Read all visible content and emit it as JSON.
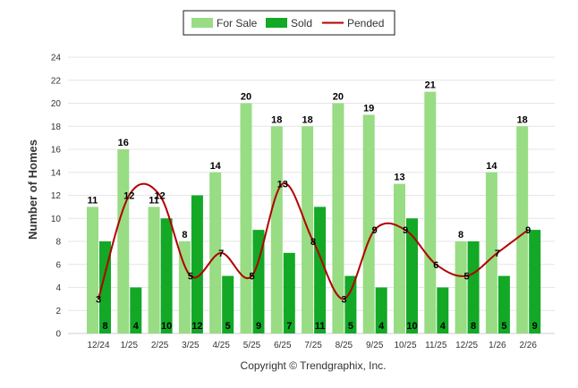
{
  "chart_data": {
    "type": "bar",
    "categories": [
      "12/24",
      "1/25",
      "2/25",
      "3/25",
      "4/25",
      "5/25",
      "6/25",
      "7/25",
      "8/25",
      "9/25",
      "10/25",
      "11/25",
      "12/25",
      "1/26",
      "2/26"
    ],
    "series": [
      {
        "name": "For Sale",
        "type": "bar",
        "color": "#98DC84",
        "values": [
          11,
          16,
          11,
          8,
          14,
          20,
          18,
          18,
          20,
          19,
          13,
          21,
          8,
          14,
          18
        ]
      },
      {
        "name": "Sold",
        "type": "bar",
        "color": "#13A826",
        "values": [
          8,
          4,
          10,
          12,
          5,
          9,
          7,
          11,
          5,
          4,
          10,
          4,
          8,
          5,
          9
        ]
      },
      {
        "name": "Pended",
        "type": "line",
        "color": "#B20000",
        "values": [
          3,
          12,
          12,
          5,
          7,
          5,
          13,
          8,
          3,
          9,
          9,
          6,
          5,
          7,
          9
        ]
      }
    ],
    "ylabel": "Number of Homes",
    "ylim": [
      0,
      24
    ],
    "yticks": [
      0,
      2,
      4,
      6,
      8,
      10,
      12,
      14,
      16,
      18,
      20,
      22,
      24
    ],
    "grid": true,
    "legend_position": "top-center"
  },
  "footer": {
    "copyright": "Copyright © Trendgraphix, Inc."
  }
}
